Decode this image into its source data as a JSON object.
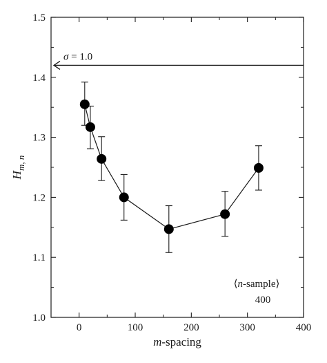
{
  "chart_data": {
    "type": "scatter",
    "x": [
      10,
      20,
      40,
      80,
      160,
      260,
      320
    ],
    "y": [
      1.355,
      1.317,
      1.264,
      1.2,
      1.147,
      1.172,
      1.249
    ],
    "err_upper": [
      1.392,
      1.352,
      1.301,
      1.238,
      1.186,
      1.21,
      1.286
    ],
    "err_lower": [
      1.32,
      1.281,
      1.228,
      1.162,
      1.108,
      1.135,
      1.212
    ],
    "connected": true,
    "xlim": [
      -50,
      400
    ],
    "ylim": [
      1.0,
      1.5
    ],
    "x_ticks": [
      0,
      100,
      200,
      300,
      400
    ],
    "y_ticks": [
      1.0,
      1.1,
      1.2,
      1.3,
      1.4,
      1.5
    ],
    "x_tick_labels": [
      "0",
      "100",
      "200",
      "300",
      "400"
    ],
    "y_tick_labels": [
      "1.0",
      "1.1",
      "1.2",
      "1.3",
      "1.4",
      "1.5"
    ],
    "xlabel": {
      "var": "m",
      "rest": "-spacing"
    },
    "ylabel": {
      "main": "H",
      "sub_m": "m",
      "sub_sep": ", ",
      "sub_n": "n"
    },
    "reference_line": {
      "y": 1.42,
      "label_sym": "σ",
      "label_rest": " = 1.0"
    },
    "legend": {
      "line1_open": "⟨",
      "line1_var": "n",
      "line1_rest": "-sample",
      "line1_close": "⟩",
      "line2": "400"
    },
    "colors": {
      "ink": "#1a1a1a",
      "background": "#ffffff"
    }
  }
}
